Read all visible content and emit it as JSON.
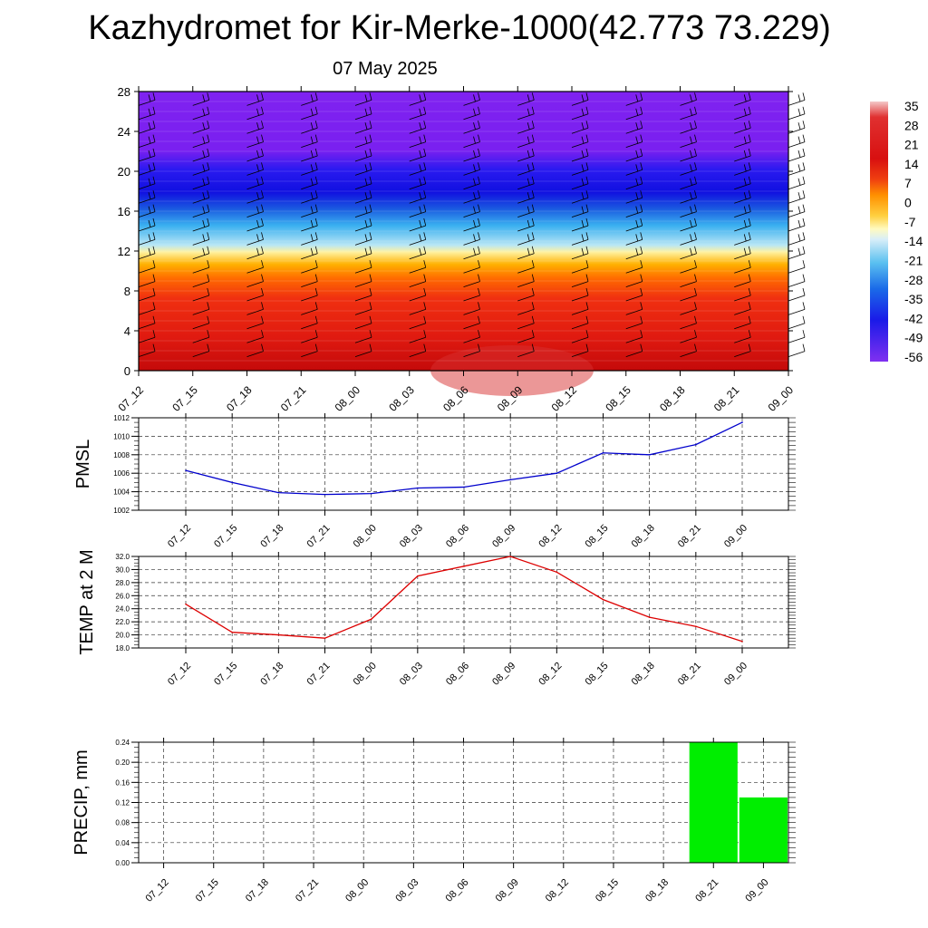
{
  "title": "Kazhydromet for Kir-Merke-1000(42.773 73.229)",
  "subtitle": "07 May 2025",
  "time_labels": [
    "07_12",
    "07_15",
    "07_18",
    "07_21",
    "08_00",
    "08_03",
    "08_06",
    "08_09",
    "08_12",
    "08_15",
    "08_18",
    "08_21",
    "09_00"
  ],
  "colorbar": {
    "labels": [
      "35",
      "28",
      "21",
      "14",
      "7",
      "0",
      "-7",
      "-14",
      "-21",
      "-28",
      "-35",
      "-42",
      "-49",
      "-56"
    ]
  },
  "chart_data": [
    {
      "type": "heatmap",
      "title": "",
      "ylabel": "",
      "ylim": [
        0,
        28
      ],
      "y_ticks": [
        0,
        4,
        8,
        12,
        16,
        20,
        24,
        28
      ],
      "x": [
        "07_12",
        "07_15",
        "07_18",
        "07_21",
        "08_00",
        "08_03",
        "08_06",
        "08_09",
        "08_12",
        "08_15",
        "08_18",
        "08_21",
        "09_00"
      ],
      "colorbar_range": [
        -56,
        35
      ],
      "legend_placement": "right",
      "wind_barbs": true
    },
    {
      "type": "line",
      "ylabel": "PMSL",
      "x": [
        "07_12",
        "07_15",
        "07_18",
        "07_21",
        "08_00",
        "08_03",
        "08_06",
        "08_09",
        "08_12",
        "08_15",
        "08_18",
        "08_21",
        "09_00"
      ],
      "values": [
        1006.3,
        1005.0,
        1003.9,
        1003.7,
        1003.8,
        1004.4,
        1004.5,
        1005.3,
        1006.0,
        1008.2,
        1008.0,
        1009.1,
        1011.5
      ],
      "ylim": [
        1002,
        1012
      ],
      "y_ticks": [
        "1002",
        "1004",
        "1006",
        "1008",
        "1010",
        "1012"
      ],
      "color": "#0000cc",
      "grid": true
    },
    {
      "type": "line",
      "ylabel": "TEMP at 2 M",
      "x": [
        "07_12",
        "07_15",
        "07_18",
        "07_21",
        "08_00",
        "08_03",
        "08_06",
        "08_09",
        "08_12",
        "08_15",
        "08_18",
        "08_21",
        "09_00"
      ],
      "values": [
        24.7,
        20.4,
        20.0,
        19.5,
        22.4,
        29.0,
        30.5,
        32.0,
        29.6,
        25.4,
        22.7,
        21.3,
        19.0
      ],
      "ylim": [
        18,
        32
      ],
      "y_ticks": [
        "18.0",
        "20.0",
        "22.0",
        "24.0",
        "26.0",
        "28.0",
        "30.0",
        "32.0"
      ],
      "color": "#dd0000",
      "grid": true
    },
    {
      "type": "bar",
      "ylabel": "PRECIP, mm",
      "x": [
        "07_12",
        "07_15",
        "07_18",
        "07_21",
        "08_00",
        "08_03",
        "08_06",
        "08_09",
        "08_12",
        "08_15",
        "08_18",
        "08_21",
        "09_00"
      ],
      "values": [
        0,
        0,
        0,
        0,
        0,
        0,
        0,
        0,
        0,
        0,
        0,
        0.24,
        0.13
      ],
      "ylim": [
        0,
        0.24
      ],
      "y_ticks": [
        "0.00",
        "0.04",
        "0.08",
        "0.12",
        "0.16",
        "0.20",
        "0.24"
      ],
      "color": "#00ee00",
      "grid": true
    }
  ]
}
